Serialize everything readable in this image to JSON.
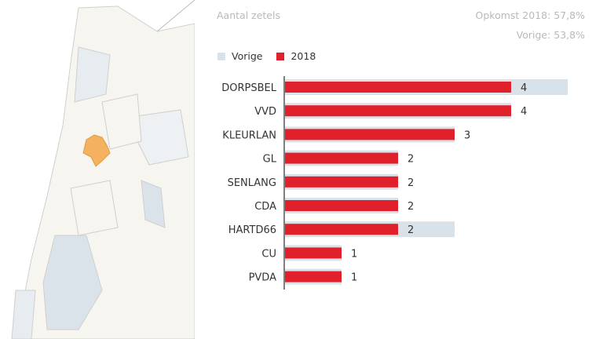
{
  "header": {
    "title": "Aantal zetels",
    "turnout_2018": "Opkomst 2018: 57,8%",
    "turnout_previous": "Vorige: 53,8%"
  },
  "colors": {
    "previous": "#d9e2e9",
    "current": "#e0212b",
    "highlight_municipality": "#f4b25e",
    "map_fill": "#f7f5ef",
    "map_alt": "#e6ecf0",
    "map_water": "#dbe3ea"
  },
  "chart_data": {
    "type": "bar",
    "orientation": "horizontal",
    "categories": [
      "DORPSBEL",
      "VVD",
      "KLEURLAN",
      "GL",
      "SENLANG",
      "CDA",
      "HARTD66",
      "CU",
      "PVDA"
    ],
    "series": [
      {
        "name": "Vorige",
        "values": [
          5,
          4,
          3,
          2,
          2,
          2,
          3,
          1,
          1
        ]
      },
      {
        "name": "2018",
        "values": [
          4,
          4,
          3,
          2,
          2,
          2,
          2,
          1,
          1
        ]
      }
    ],
    "data_labels": [
      "4",
      "4",
      "3",
      "2",
      "2",
      "2",
      "2",
      "1",
      "1"
    ],
    "legend": [
      "Vorige",
      "2018"
    ],
    "legend_placement": "top-left",
    "grid": false
  }
}
